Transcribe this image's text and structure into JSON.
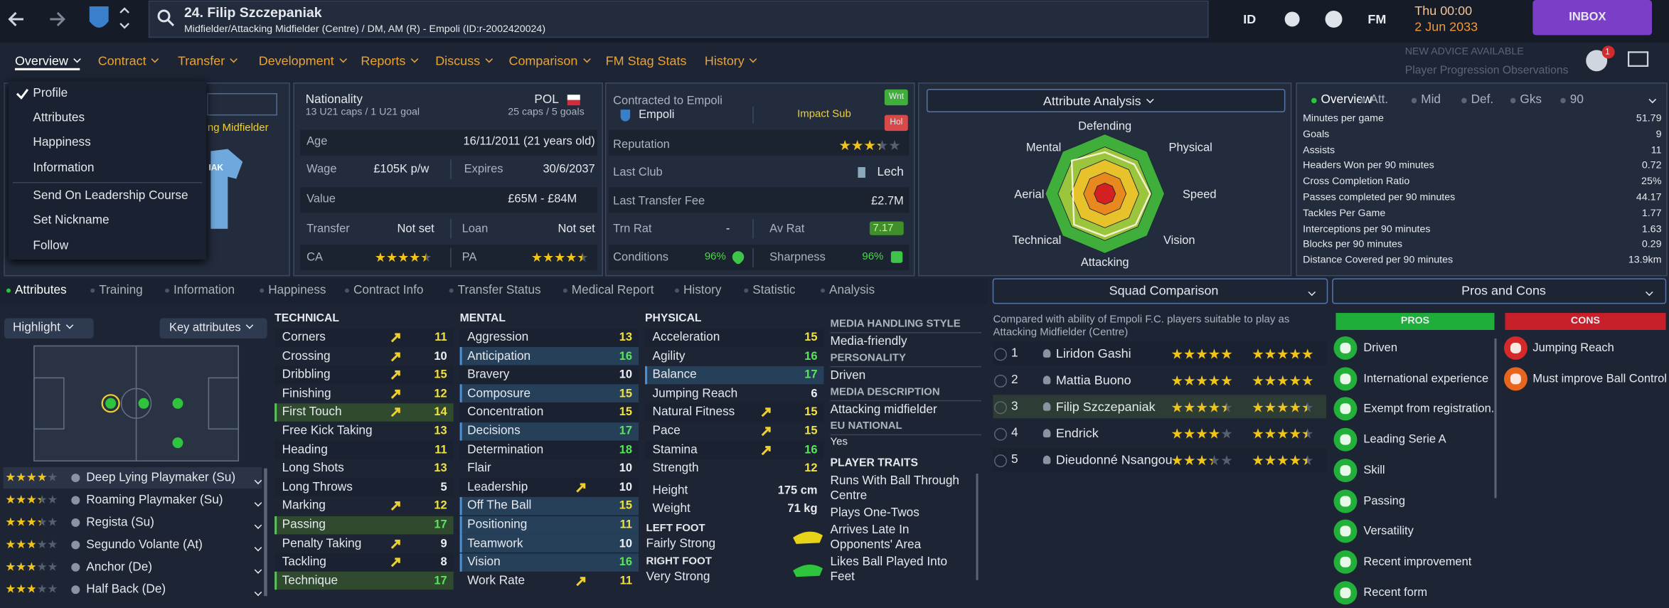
{
  "header": {
    "title": "24. Filip Szczepaniak",
    "subtitle": "Midfielder/Attacking Midfielder (Centre) / DM, AM (R) - Empoli (ID:r-2002420024)",
    "id_button": "ID",
    "fm_button": "FM",
    "time": "Thu 00:00",
    "date": "2 Jun 2033",
    "inbox": "INBOX",
    "advice": "NEW ADVICE AVAILABLE",
    "advice_item": "Player Progression Observations",
    "notification_count": "1"
  },
  "nav": [
    "Overview",
    "Contract",
    "Transfer",
    "Development",
    "Reports",
    "Discuss",
    "Comparison",
    "FM Stag Stats",
    "History"
  ],
  "menu": [
    "Profile",
    "Attributes",
    "Happiness",
    "Information",
    "Send On Leadership Course",
    "Set Nickname",
    "Follow"
  ],
  "profile": {
    "role_text": "ng Midfielder",
    "shirt_text": "IAK"
  },
  "info": {
    "nationality": "Nationality",
    "nation": "POL",
    "u21": "13 U21 caps / 1 U21 goal",
    "caps": "25 caps / 5 goals",
    "age_label": "Age",
    "age": "16/11/2011 (21 years old)",
    "wage_label": "Wage",
    "wage": "£105K p/w",
    "expires_label": "Expires",
    "expires": "30/6/2037",
    "value_label": "Value",
    "value": "£65M - £84M",
    "transfer_label": "Transfer",
    "transfer": "Not set",
    "loan_label": "Loan",
    "loan": "Not set",
    "ca_label": "CA",
    "ca": 4,
    "pa_label": "PA",
    "pa": 4
  },
  "contract": {
    "contracted": "Contracted to Empoli",
    "club": "Empoli",
    "role": "Impact Sub",
    "wanted": "Wnt",
    "hol": "Hol",
    "reputation_label": "Reputation",
    "reputation": 3,
    "last_club_label": "Last Club",
    "last_club": "Lech",
    "fee_label": "Last Transfer Fee",
    "fee": "£2.7M",
    "trn_label": "Trn Rat",
    "trn": "-",
    "av_label": "Av Rat",
    "av": "7.17",
    "conditions_label": "Conditions",
    "conditions": "96%",
    "sharpness_label": "Sharpness",
    "sharpness": "96%"
  },
  "attribute_analysis": {
    "title": "Attribute Analysis",
    "labels": [
      "Defending",
      "Physical",
      "Speed",
      "Vision",
      "Attacking",
      "Technical",
      "Aerial",
      "Mental"
    ]
  },
  "stats": {
    "tabs": [
      "Overview",
      "Att.",
      "Mid",
      "Def.",
      "Gks",
      "90"
    ],
    "rows": [
      [
        "Minutes per game",
        "51.79"
      ],
      [
        "Goals",
        "9"
      ],
      [
        "Assists",
        "11"
      ],
      [
        "Headers Won per 90 minutes",
        "0.72"
      ],
      [
        "Cross Completion Ratio",
        "25%"
      ],
      [
        "Passes completed per 90 minutes",
        "44.17"
      ],
      [
        "Tackles Per Game",
        "1.77"
      ],
      [
        "Interceptions per 90 minutes",
        "1.63"
      ],
      [
        "Blocks per 90 minutes",
        "0.29"
      ],
      [
        "Distance Covered per 90 minutes",
        "13.9km"
      ]
    ]
  },
  "tabs": [
    "Attributes",
    "Training",
    "Information",
    "Happiness",
    "Contract Info",
    "Transfer Status",
    "Medical Report",
    "History",
    "Statistic",
    "Analysis"
  ],
  "roles": {
    "highlight": "Highlight",
    "key": "Key attributes",
    "items": [
      {
        "name": "Deep Lying Playmaker (Su)",
        "stars": 3.5
      },
      {
        "name": "Roaming Playmaker (Su)",
        "stars": 3
      },
      {
        "name": "Regista (Su)",
        "stars": 3
      },
      {
        "name": "Segundo Volante (At)",
        "stars": 2.5
      },
      {
        "name": "Anchor (De)",
        "stars": 2.5
      },
      {
        "name": "Half Back (De)",
        "stars": 2.5
      }
    ]
  },
  "technical": {
    "title": "TECHNICAL",
    "rows": [
      {
        "name": "Corners",
        "value": 11,
        "up": true
      },
      {
        "name": "Crossing",
        "value": 10,
        "up": true
      },
      {
        "name": "Dribbling",
        "value": 15,
        "up": true
      },
      {
        "name": "Finishing",
        "value": 12,
        "up": true
      },
      {
        "name": "First Touch",
        "value": 14,
        "up": true,
        "key": "green"
      },
      {
        "name": "Free Kick Taking",
        "value": 13
      },
      {
        "name": "Heading",
        "value": 11
      },
      {
        "name": "Long Shots",
        "value": 13
      },
      {
        "name": "Long Throws",
        "value": 5
      },
      {
        "name": "Marking",
        "value": 12,
        "up": true
      },
      {
        "name": "Passing",
        "value": 17,
        "key": "green"
      },
      {
        "name": "Penalty Taking",
        "value": 9,
        "up": true
      },
      {
        "name": "Tackling",
        "value": 8,
        "up": true
      },
      {
        "name": "Technique",
        "value": 17,
        "key": "green"
      }
    ]
  },
  "mental": {
    "title": "MENTAL",
    "rows": [
      {
        "name": "Aggression",
        "value": 13
      },
      {
        "name": "Anticipation",
        "value": 16,
        "key": "blue"
      },
      {
        "name": "Bravery",
        "value": 10
      },
      {
        "name": "Composure",
        "value": 15,
        "key": "blue"
      },
      {
        "name": "Concentration",
        "value": 15
      },
      {
        "name": "Decisions",
        "value": 17,
        "key": "blue"
      },
      {
        "name": "Determination",
        "value": 18
      },
      {
        "name": "Flair",
        "value": 10
      },
      {
        "name": "Leadership",
        "value": 10,
        "up": true
      },
      {
        "name": "Off The Ball",
        "value": 15,
        "key": "blue"
      },
      {
        "name": "Positioning",
        "value": 11,
        "key": "blue"
      },
      {
        "name": "Teamwork",
        "value": 10,
        "key": "blue"
      },
      {
        "name": "Vision",
        "value": 16,
        "key": "blue"
      },
      {
        "name": "Work Rate",
        "value": 11,
        "up": true
      }
    ]
  },
  "physical": {
    "title": "PHYSICAL",
    "rows": [
      {
        "name": "Acceleration",
        "value": 15
      },
      {
        "name": "Agility",
        "value": 16
      },
      {
        "name": "Balance",
        "value": 17,
        "key": "blue"
      },
      {
        "name": "Jumping Reach",
        "value": 6
      },
      {
        "name": "Natural Fitness",
        "value": 15,
        "up": true
      },
      {
        "name": "Pace",
        "value": 15,
        "up": true
      },
      {
        "name": "Stamina",
        "value": 16,
        "up": true
      },
      {
        "name": "Strength",
        "value": 12
      }
    ],
    "height_label": "Height",
    "height": "175 cm",
    "weight_label": "Weight",
    "weight": "71 kg",
    "left_foot_label": "LEFT FOOT",
    "left_foot": "Fairly Strong",
    "right_foot_label": "RIGHT FOOT",
    "right_foot": "Very Strong"
  },
  "media": {
    "items": [
      [
        "MEDIA HANDLING STYLE",
        "Media-friendly"
      ],
      [
        "PERSONALITY",
        "Driven"
      ],
      [
        "MEDIA DESCRIPTION",
        "Attacking midfielder"
      ],
      [
        "EU NATIONAL",
        "Yes"
      ]
    ],
    "traits_title": "PLAYER TRAITS",
    "traits": [
      "Runs With Ball Through Centre",
      "Plays One-Twos",
      "Arrives Late In Opponents' Area",
      "Likes Ball Played Into Feet"
    ]
  },
  "squad_comparison": {
    "title": "Squad Comparison",
    "note": "Compared with ability of Empoli F.C. players suitable to play as Attacking Midfielder (Centre)",
    "players": [
      {
        "rank": "1",
        "name": "Liridon Gashi",
        "current": 4.5,
        "potential": 4.5
      },
      {
        "rank": "2",
        "name": "Mattia Buono",
        "current": 4.5,
        "potential": 4.5
      },
      {
        "rank": "3",
        "name": "Filip Szczepaniak",
        "current": 4,
        "potential": 4
      },
      {
        "rank": "4",
        "name": "Endrick",
        "current": 3.5,
        "potential": 4
      },
      {
        "rank": "5",
        "name": "Dieudonné Nsangou",
        "current": 3,
        "potential": 4
      }
    ]
  },
  "pros_cons": {
    "title": "Pros and Cons",
    "pros_title": "PROS",
    "cons_title": "CONS",
    "pros": [
      "Driven",
      "International experience",
      "Exempt from registration.",
      "Leading Serie A",
      "Skill",
      "Passing",
      "Versatility",
      "Recent improvement",
      "Recent form"
    ],
    "cons": [
      "Jumping Reach",
      "Must improve Ball Control"
    ]
  }
}
